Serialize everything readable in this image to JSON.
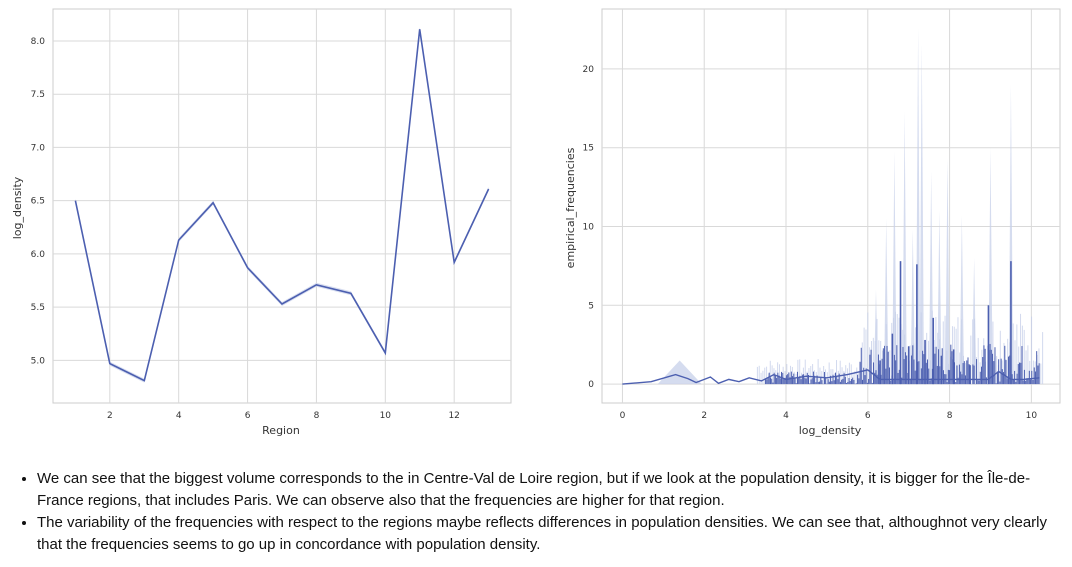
{
  "chart_data": [
    {
      "type": "line",
      "xlabel": "Region",
      "ylabel": "log_density",
      "xlim": [
        0.35,
        13.65
      ],
      "ylim": [
        4.6,
        8.3
      ],
      "xticks": [
        2,
        4,
        6,
        8,
        10,
        12
      ],
      "yticks": [
        5.0,
        5.5,
        6.0,
        6.5,
        7.0,
        7.5,
        8.0
      ],
      "grid": true,
      "color": "#4c5fb0",
      "x": [
        1,
        2,
        3,
        4,
        5,
        6,
        7,
        8,
        9,
        10,
        11,
        12,
        13
      ],
      "values": [
        6.5,
        4.97,
        4.81,
        6.13,
        6.48,
        5.87,
        5.53,
        5.71,
        5.63,
        5.07,
        8.11,
        5.92,
        6.61
      ]
    },
    {
      "type": "line",
      "xlabel": "log_density",
      "ylabel": "empirical_frequencies",
      "xlim": [
        -0.5,
        10.7
      ],
      "ylim": [
        -1.2,
        23.8
      ],
      "xticks": [
        0,
        2,
        4,
        6,
        8,
        10
      ],
      "yticks": [
        0,
        5,
        10,
        15,
        20
      ],
      "grid": true,
      "color": "#4c5fb0",
      "band_color": "#c7d0ea",
      "points": [
        {
          "x": 0.0,
          "y": 0.0
        },
        {
          "x": 0.7,
          "y": 0.15
        },
        {
          "x": 1.3,
          "y": 0.6
        },
        {
          "x": 1.6,
          "y": 0.35
        },
        {
          "x": 1.8,
          "y": 0.1
        },
        {
          "x": 2.15,
          "y": 0.45
        },
        {
          "x": 2.35,
          "y": 0.05
        },
        {
          "x": 2.6,
          "y": 0.3
        },
        {
          "x": 2.85,
          "y": 0.15
        },
        {
          "x": 3.1,
          "y": 0.4
        },
        {
          "x": 3.4,
          "y": 0.2
        },
        {
          "x": 3.7,
          "y": 0.6
        },
        {
          "x": 4.0,
          "y": 0.3
        },
        {
          "x": 4.5,
          "y": 0.5
        },
        {
          "x": 5.0,
          "y": 0.4
        },
        {
          "x": 5.5,
          "y": 0.6
        },
        {
          "x": 6.0,
          "y": 0.9
        },
        {
          "x": 6.3,
          "y": 1.5
        },
        {
          "x": 6.6,
          "y": 3.2
        },
        {
          "x": 6.8,
          "y": 7.8
        },
        {
          "x": 7.0,
          "y": 2.4
        },
        {
          "x": 7.2,
          "y": 7.6
        },
        {
          "x": 7.4,
          "y": 2.8
        },
        {
          "x": 7.6,
          "y": 4.2
        },
        {
          "x": 7.8,
          "y": 1.8
        },
        {
          "x": 8.1,
          "y": 2.2
        },
        {
          "x": 8.5,
          "y": 1.2
        },
        {
          "x": 8.95,
          "y": 5.0
        },
        {
          "x": 9.2,
          "y": 0.8
        },
        {
          "x": 9.5,
          "y": 7.8
        },
        {
          "x": 9.8,
          "y": 0.3
        },
        {
          "x": 10.2,
          "y": 0.4
        }
      ],
      "band_peaks": [
        {
          "x": 1.4,
          "y": 1.5
        },
        {
          "x": 6.2,
          "y": 6.0
        },
        {
          "x": 6.45,
          "y": 10.5
        },
        {
          "x": 6.65,
          "y": 14.8
        },
        {
          "x": 6.9,
          "y": 17.3
        },
        {
          "x": 7.1,
          "y": 9.8
        },
        {
          "x": 7.23,
          "y": 22.6
        },
        {
          "x": 7.32,
          "y": 21.6
        },
        {
          "x": 7.55,
          "y": 13.5
        },
        {
          "x": 7.75,
          "y": 11.0
        },
        {
          "x": 7.95,
          "y": 14.3
        },
        {
          "x": 8.3,
          "y": 10.7
        },
        {
          "x": 8.6,
          "y": 8.0
        },
        {
          "x": 9.0,
          "y": 15.0
        },
        {
          "x": 9.5,
          "y": 19.0
        }
      ]
    }
  ],
  "notes": [
    "We can see that the biggest volume corresponds to the in Centre-Val de Loire region, but if we look at the population density, it is bigger for the Île-de-France regions, that includes Paris. We can observe also that the frequencies are higher for that region.",
    "The variability of the frequencies with respect to the regions maybe reflects differences in population densities. We can see that, althoughnot very clearly that the frequencies seems to go up in concordance with population density."
  ]
}
